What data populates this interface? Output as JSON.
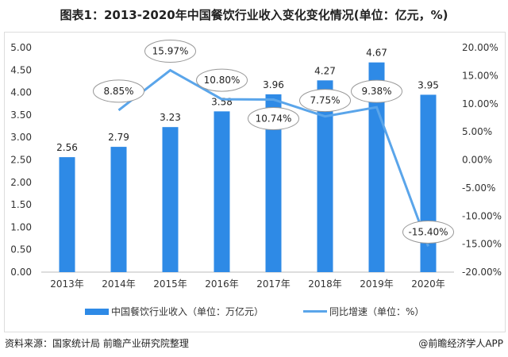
{
  "title": "图表1：2013-2020年中国餐饮行业收入变化变化情况(单位：亿元，%)",
  "source": "资料来源：国家统计局 前瞻产业研究院整理",
  "credit": "@前瞻经济学人APP",
  "chart_data": {
    "type": "bar+line",
    "categories": [
      "2013年",
      "2014年",
      "2015年",
      "2016年",
      "2017年",
      "2018年",
      "2019年",
      "2020年"
    ],
    "series": [
      {
        "name": "中国餐饮行业收入（单位：万亿元）",
        "type": "bar",
        "axis": "left",
        "color": "#2e8ae6",
        "values": [
          2.56,
          2.79,
          3.23,
          3.58,
          3.96,
          4.27,
          4.67,
          3.95
        ],
        "labels": [
          "2.56",
          "2.79",
          "3.23",
          "3.58",
          "3.96",
          "4.27",
          "4.67",
          "3.95"
        ]
      },
      {
        "name": "同比增速（单位：%）",
        "type": "line",
        "axis": "right",
        "color": "#5aa5ea",
        "values": [
          null,
          8.85,
          15.97,
          10.8,
          10.74,
          7.75,
          9.38,
          -15.4
        ],
        "labels": [
          "",
          "8.85%",
          "15.97%",
          "10.80%",
          "10.74%",
          "7.75%",
          "9.38%",
          "-15.40%"
        ]
      }
    ],
    "left_axis": {
      "ylim": [
        0,
        5
      ],
      "ticks": [
        "0.00",
        "0.50",
        "1.00",
        "1.50",
        "2.00",
        "2.50",
        "3.00",
        "3.50",
        "4.00",
        "4.50",
        "5.00"
      ]
    },
    "right_axis": {
      "ylim": [
        -20,
        20
      ],
      "ticks": [
        "-20.00%",
        "-15.00%",
        "-10.00%",
        "-5.00%",
        "0.00%",
        "5.00%",
        "10.00%",
        "15.00%",
        "20.00%"
      ]
    },
    "grid": false,
    "legend": "bottom"
  }
}
